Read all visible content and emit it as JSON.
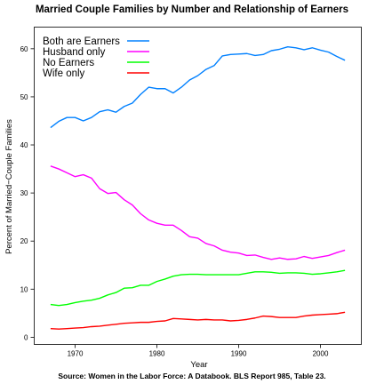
{
  "chart_data": {
    "type": "line",
    "title": "Married Couple Families by Number and Relationship of Earners",
    "caption": "Source: Women in the Labor Force: A Databook. BLS Report 985, Table 23.",
    "xlabel": "Year",
    "ylabel": "Percent of Married−Couple Families",
    "xlim": [
      1965,
      2005
    ],
    "ylim": [
      -1.5,
      64.5
    ],
    "x_ticks": [
      1970,
      1980,
      1990,
      2000
    ],
    "y_ticks": [
      0,
      10,
      20,
      30,
      40,
      50,
      60
    ],
    "grid": false,
    "legend_position": "top-left",
    "x": [
      1967,
      1968,
      1969,
      1970,
      1971,
      1972,
      1973,
      1974,
      1975,
      1976,
      1977,
      1978,
      1979,
      1980,
      1981,
      1982,
      1983,
      1984,
      1985,
      1986,
      1987,
      1988,
      1989,
      1990,
      1991,
      1992,
      1993,
      1994,
      1995,
      1996,
      1997,
      1998,
      1999,
      2000,
      2001,
      2002,
      2003
    ],
    "series": [
      {
        "name": "Both are Earners",
        "color": "#0080ff",
        "values": [
          43.6,
          44.9,
          45.7,
          45.7,
          45.0,
          45.7,
          46.9,
          47.3,
          46.8,
          48.0,
          48.7,
          50.5,
          52.0,
          51.7,
          51.7,
          50.8,
          52.0,
          53.5,
          54.4,
          55.7,
          56.5,
          58.5,
          58.8,
          58.9,
          59.0,
          58.6,
          58.8,
          59.6,
          59.9,
          60.4,
          60.2,
          59.8,
          60.2,
          59.7,
          59.3,
          58.4,
          57.6
        ]
      },
      {
        "name": "Husband only",
        "color": "#ff00ff",
        "values": [
          35.6,
          35.0,
          34.2,
          33.4,
          33.8,
          33.1,
          30.9,
          29.9,
          30.1,
          28.6,
          27.5,
          25.7,
          24.4,
          23.7,
          23.3,
          23.3,
          22.2,
          20.9,
          20.6,
          19.5,
          19.0,
          18.1,
          17.7,
          17.5,
          17.0,
          17.1,
          16.6,
          16.2,
          16.5,
          16.2,
          16.3,
          16.8,
          16.4,
          16.7,
          17.0,
          17.6,
          18.1
        ]
      },
      {
        "name": "No Earners",
        "color": "#00ff00",
        "values": [
          6.8,
          6.6,
          6.8,
          7.2,
          7.5,
          7.7,
          8.1,
          8.8,
          9.3,
          10.2,
          10.3,
          10.8,
          10.8,
          11.6,
          12.1,
          12.7,
          13.0,
          13.1,
          13.1,
          13.0,
          13.0,
          13.0,
          13.0,
          13.0,
          13.3,
          13.6,
          13.6,
          13.5,
          13.3,
          13.4,
          13.4,
          13.3,
          13.1,
          13.2,
          13.4,
          13.6,
          13.9
        ]
      },
      {
        "name": "Wife only",
        "color": "#ff0000",
        "values": [
          1.8,
          1.7,
          1.8,
          1.9,
          2.0,
          2.2,
          2.3,
          2.5,
          2.7,
          2.9,
          3.0,
          3.1,
          3.1,
          3.3,
          3.4,
          3.9,
          3.8,
          3.7,
          3.6,
          3.7,
          3.6,
          3.6,
          3.4,
          3.5,
          3.7,
          4.0,
          4.4,
          4.3,
          4.1,
          4.1,
          4.1,
          4.4,
          4.6,
          4.7,
          4.8,
          4.9,
          5.2
        ]
      }
    ]
  }
}
